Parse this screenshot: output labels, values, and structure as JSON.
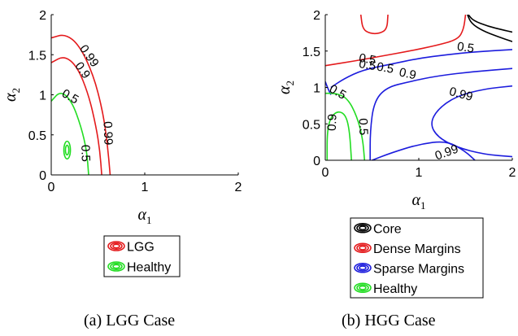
{
  "figure": {
    "captions": [
      "(a) LGG Case",
      "(b) HGG Case"
    ]
  },
  "chart_data": [
    {
      "type": "contour",
      "panel": "a",
      "xlabel": "α1",
      "ylabel": "α2",
      "xlim": [
        0,
        2
      ],
      "ylim": [
        0,
        2
      ],
      "xticks": [
        "0",
        "1",
        "2"
      ],
      "yticks": [
        "0",
        "0.5",
        "1",
        "1.5",
        "2"
      ],
      "legend": {
        "placement": "below",
        "entries": [
          {
            "label": "LGG",
            "color": "#e41a1c"
          },
          {
            "label": "Healthy",
            "color": "#22dd22"
          }
        ]
      },
      "series": [
        {
          "name": "LGG",
          "color": "#e41a1c",
          "contours": [
            {
              "level": "0.99",
              "points": [
                [
                  0,
                  1.71
                ],
                [
                  0.15,
                  1.76
                ],
                [
                  0.3,
                  1.62
                ],
                [
                  0.45,
                  1.25
                ],
                [
                  0.55,
                  0.8
                ],
                [
                  0.6,
                  0.4
                ],
                [
                  0.63,
                  0
                ]
              ]
            },
            {
              "level": "0.9",
              "points": [
                [
                  0,
                  1.4
                ],
                [
                  0.14,
                  1.49
                ],
                [
                  0.28,
                  1.35
                ],
                [
                  0.4,
                  1.0
                ],
                [
                  0.48,
                  0.6
                ],
                [
                  0.52,
                  0.3
                ],
                [
                  0.54,
                  0
                ]
              ]
            }
          ],
          "labels": [
            {
              "text": "0.99",
              "x": 0.4,
              "y": 1.48,
              "angle": 55
            },
            {
              "text": "0.9",
              "x": 0.33,
              "y": 1.3,
              "angle": 55
            },
            {
              "text": "0.99",
              "x": 0.6,
              "y": 0.52,
              "angle": 88
            }
          ]
        },
        {
          "name": "Healthy",
          "color": "#22dd22",
          "contours": [
            {
              "level": "0.5",
              "points": [
                [
                  0,
                  0.92
                ],
                [
                  0.1,
                  1.05
                ],
                [
                  0.22,
                  0.92
                ],
                [
                  0.32,
                  0.6
                ],
                [
                  0.38,
                  0.3
                ],
                [
                  0.4,
                  0
                ]
              ]
            },
            {
              "level": "0.9",
              "ellipse": {
                "cx": 0.17,
                "cy": 0.31,
                "rx": 0.035,
                "ry": 0.11
              }
            },
            {
              "level": "0.99",
              "ellipse": {
                "cx": 0.17,
                "cy": 0.31,
                "rx": 0.018,
                "ry": 0.06
              }
            }
          ],
          "labels": [
            {
              "text": "0.5",
              "x": 0.2,
              "y": 0.97,
              "angle": 30
            },
            {
              "text": "0.5",
              "x": 0.36,
              "y": 0.27,
              "angle": 88
            }
          ]
        }
      ]
    },
    {
      "type": "contour",
      "panel": "b",
      "xlabel": "α1",
      "ylabel": "α2",
      "xlim": [
        0,
        2
      ],
      "ylim": [
        0,
        2
      ],
      "xticks": [
        "0",
        "1",
        "2"
      ],
      "yticks": [
        "0",
        "0.5",
        "1",
        "1.5",
        "2"
      ],
      "legend": {
        "placement": "below",
        "entries": [
          {
            "label": "Core",
            "color": "#000000"
          },
          {
            "label": "Dense Margins",
            "color": "#e41a1c"
          },
          {
            "label": "Sparse Margins",
            "color": "#1c1cdd"
          },
          {
            "label": "Healthy",
            "color": "#22dd22"
          }
        ]
      },
      "series": [
        {
          "name": "Core",
          "color": "#000000",
          "contours": [
            {
              "level": "0.5",
              "points": [
                [
                  1.52,
                  2.0
                ],
                [
                  1.56,
                  1.88
                ],
                [
                  1.68,
                  1.78
                ],
                [
                  1.84,
                  1.7
                ],
                [
                  2.0,
                  1.63
                ]
              ]
            },
            {
              "level": "0.9",
              "points": [
                [
                  1.53,
                  2.0
                ],
                [
                  1.58,
                  1.92
                ],
                [
                  1.74,
                  1.84
                ],
                [
                  1.9,
                  1.79
                ],
                [
                  2.0,
                  1.76
                ]
              ]
            }
          ],
          "labels": []
        },
        {
          "name": "Dense Margins",
          "color": "#e41a1c",
          "contours": [
            {
              "level": "0.5",
              "points": [
                [
                  0.38,
                  2.0
                ],
                [
                  0.4,
                  1.8
                ],
                [
                  0.48,
                  1.74
                ],
                [
                  0.58,
                  1.74
                ],
                [
                  0.66,
                  1.8
                ],
                [
                  0.67,
                  2.0
                ]
              ]
            },
            {
              "level": "0.5",
              "points": [
                [
                  0,
                  1.3
                ],
                [
                  0.3,
                  1.36
                ],
                [
                  0.6,
                  1.43
                ],
                [
                  0.9,
                  1.5
                ],
                [
                  1.2,
                  1.58
                ],
                [
                  1.42,
                  1.66
                ],
                [
                  1.48,
                  1.8
                ],
                [
                  1.5,
                  2.0
                ]
              ]
            }
          ],
          "labels": [
            {
              "text": "0.5",
              "x": 0.45,
              "y": 1.38,
              "angle": 10
            },
            {
              "text": "0.5",
              "x": 0.45,
              "y": 1.3,
              "angle": 10
            },
            {
              "text": "0.5",
              "x": 0.64,
              "y": 1.26,
              "angle": 10
            }
          ]
        },
        {
          "name": "Sparse Margins",
          "color": "#1c1cdd",
          "contours": [
            {
              "level": "0.5",
              "points": [
                [
                  0.06,
                  1.0
                ],
                [
                  0.2,
                  1.12
                ],
                [
                  0.4,
                  1.24
                ],
                [
                  0.7,
                  1.32
                ],
                [
                  1.0,
                  1.4
                ],
                [
                  1.3,
                  1.45
                ],
                [
                  1.6,
                  1.49
                ],
                [
                  2.0,
                  1.52
                ]
              ]
            },
            {
              "level": "0.9",
              "points": [
                [
                  0.48,
                  0
                ],
                [
                  0.48,
                  0.4
                ],
                [
                  0.52,
                  0.8
                ],
                [
                  0.65,
                  1.0
                ],
                [
                  0.9,
                  1.08
                ],
                [
                  1.2,
                  1.16
                ],
                [
                  1.6,
                  1.22
                ],
                [
                  2.0,
                  1.26
                ]
              ]
            },
            {
              "level": "0.99",
              "points": [
                [
                  2.0,
                  1.02
                ],
                [
                  1.7,
                  0.98
                ],
                [
                  1.4,
                  0.88
                ],
                [
                  1.2,
                  0.7
                ],
                [
                  1.12,
                  0.5
                ],
                [
                  1.2,
                  0.32
                ],
                [
                  1.4,
                  0.18
                ],
                [
                  1.7,
                  0.08
                ],
                [
                  2.0,
                  0.05
                ]
              ]
            },
            {
              "level": "0.99",
              "points": [
                [
                  0.5,
                  0
                ],
                [
                  0.7,
                  0.1
                ],
                [
                  1.0,
                  0.22
                ],
                [
                  1.3,
                  0.27
                ],
                [
                  1.5,
                  0.12
                ],
                [
                  1.6,
                  0
                ]
              ]
            },
            {
              "level": "0.5",
              "points": [
                [
                  0,
                  1.08
                ],
                [
                  0.03,
                  0.98
                ],
                [
                  0.06,
                  0.9
                ]
              ]
            }
          ],
          "labels": [
            {
              "text": "0.5",
              "x": 1.5,
              "y": 1.54,
              "angle": 8
            },
            {
              "text": "0.9",
              "x": 0.88,
              "y": 1.18,
              "angle": 12
            },
            {
              "text": "0.99",
              "x": 1.45,
              "y": 0.9,
              "angle": 15
            },
            {
              "text": "0.99",
              "x": 1.3,
              "y": 0.1,
              "angle": -20
            }
          ]
        },
        {
          "name": "Healthy",
          "color": "#22dd22",
          "contours": [
            {
              "level": "0.5",
              "points": [
                [
                  0,
                  0.92
                ],
                [
                  0.12,
                  0.92
                ],
                [
                  0.24,
                  0.85
                ],
                [
                  0.34,
                  0.6
                ],
                [
                  0.4,
                  0.3
                ],
                [
                  0.42,
                  0
                ]
              ]
            },
            {
              "level": "0.9",
              "points": [
                [
                  0.02,
                  0
                ],
                [
                  0.02,
                  0.4
                ],
                [
                  0.06,
                  0.6
                ],
                [
                  0.14,
                  0.68
                ],
                [
                  0.22,
                  0.62
                ],
                [
                  0.26,
                  0.4
                ],
                [
                  0.28,
                  0
                ]
              ]
            }
          ],
          "labels": [
            {
              "text": "0.5",
              "x": 0.13,
              "y": 0.93,
              "angle": 30
            },
            {
              "text": "0.9",
              "x": 0.08,
              "y": 0.52,
              "angle": -88
            },
            {
              "text": "0.5",
              "x": 0.4,
              "y": 0.46,
              "angle": 88
            }
          ]
        }
      ]
    }
  ]
}
